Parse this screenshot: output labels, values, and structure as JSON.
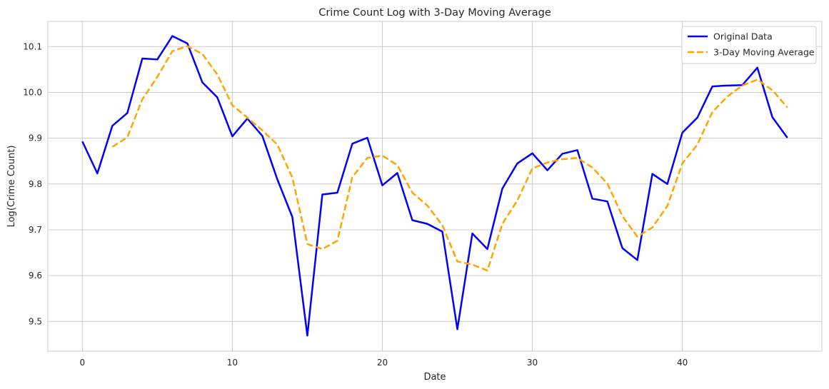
{
  "chart_data": {
    "type": "line",
    "title": "Crime Count Log with 3-Day Moving Average",
    "xlabel": "Date",
    "ylabel": "Log(Crime Count)",
    "xlim": [
      -2.3,
      49.3
    ],
    "ylim": [
      9.435,
      10.155
    ],
    "x_ticks": [
      0,
      10,
      20,
      30,
      40
    ],
    "y_ticks": [
      9.5,
      9.6,
      9.7,
      9.8,
      9.9,
      10.0,
      10.1
    ],
    "y_tick_labels": [
      "9.5",
      "9.6",
      "9.7",
      "9.8",
      "9.9",
      "10.0",
      "10.1"
    ],
    "grid": true,
    "legend_position": "top-right",
    "series": [
      {
        "name": "Original Data",
        "color": "#0000ff",
        "style": "solid",
        "x": [
          0,
          1,
          2,
          3,
          4,
          5,
          6,
          7,
          8,
          9,
          10,
          11,
          12,
          13,
          14,
          15,
          16,
          17,
          18,
          19,
          20,
          21,
          22,
          23,
          24,
          25,
          26,
          27,
          28,
          29,
          30,
          31,
          32,
          33,
          34,
          35,
          36,
          37,
          38,
          39,
          40,
          41,
          42,
          43,
          44,
          45,
          46,
          47
        ],
        "values": [
          9.893,
          9.823,
          9.927,
          9.955,
          10.074,
          10.072,
          10.123,
          10.107,
          10.022,
          9.989,
          9.904,
          9.943,
          9.905,
          9.81,
          9.728,
          9.469,
          9.777,
          9.781,
          9.888,
          9.901,
          9.797,
          9.824,
          9.721,
          9.713,
          9.696,
          9.483,
          9.692,
          9.658,
          9.79,
          9.845,
          9.867,
          9.83,
          9.866,
          9.874,
          9.768,
          9.762,
          9.66,
          9.634,
          9.822,
          9.8,
          9.912,
          9.945,
          10.013,
          10.015,
          10.016,
          10.054,
          9.946,
          9.901
        ]
      },
      {
        "name": "3-Day Moving Average",
        "color": "#ffa500",
        "style": "dashed",
        "x": [
          2,
          3,
          4,
          5,
          6,
          7,
          8,
          9,
          10,
          11,
          12,
          13,
          14,
          15,
          16,
          17,
          18,
          19,
          20,
          21,
          22,
          23,
          24,
          25,
          26,
          27,
          28,
          29,
          30,
          31,
          32,
          33,
          34,
          35,
          36,
          37,
          38,
          39,
          40,
          41,
          42,
          43,
          44,
          45,
          46,
          47
        ],
        "values": [
          9.881,
          9.902,
          9.985,
          10.034,
          10.09,
          10.101,
          10.084,
          10.039,
          9.972,
          9.945,
          9.917,
          9.886,
          9.814,
          9.669,
          9.658,
          9.676,
          9.815,
          9.857,
          9.862,
          9.841,
          9.781,
          9.753,
          9.71,
          9.631,
          9.624,
          9.611,
          9.713,
          9.764,
          9.834,
          9.847,
          9.854,
          9.857,
          9.836,
          9.801,
          9.73,
          9.685,
          9.705,
          9.752,
          9.845,
          9.886,
          9.957,
          9.991,
          10.015,
          10.028,
          10.005,
          9.967
        ]
      }
    ]
  }
}
